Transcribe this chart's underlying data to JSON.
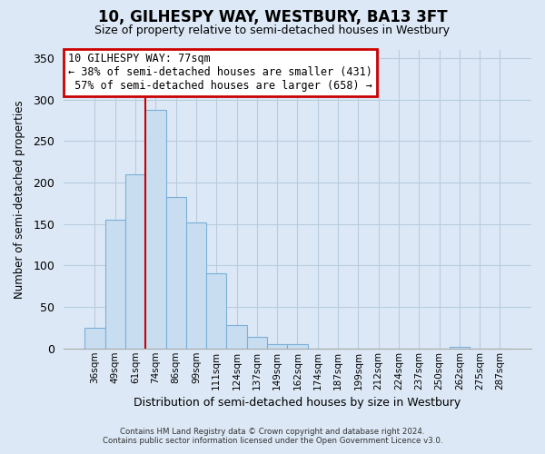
{
  "title": "10, GILHESPY WAY, WESTBURY, BA13 3FT",
  "subtitle": "Size of property relative to semi-detached houses in Westbury",
  "xlabel": "Distribution of semi-detached houses by size in Westbury",
  "ylabel": "Number of semi-detached properties",
  "footer_lines": [
    "Contains HM Land Registry data © Crown copyright and database right 2024.",
    "Contains public sector information licensed under the Open Government Licence v3.0."
  ],
  "bin_labels": [
    "36sqm",
    "49sqm",
    "61sqm",
    "74sqm",
    "86sqm",
    "99sqm",
    "111sqm",
    "124sqm",
    "137sqm",
    "149sqm",
    "162sqm",
    "174sqm",
    "187sqm",
    "199sqm",
    "212sqm",
    "224sqm",
    "237sqm",
    "250sqm",
    "262sqm",
    "275sqm",
    "287sqm"
  ],
  "bar_values": [
    25,
    155,
    210,
    288,
    183,
    152,
    91,
    28,
    14,
    5,
    5,
    0,
    0,
    0,
    0,
    0,
    0,
    0,
    2,
    0,
    0
  ],
  "bar_color": "#c9ddf0",
  "bar_edge_color": "#7ab0d8",
  "red_line_bin_index": 3,
  "annotation_title": "10 GILHESPY WAY: 77sqm",
  "annotation_line1": "← 38% of semi-detached houses are smaller (431)",
  "annotation_line2": " 57% of semi-detached houses are larger (658) →",
  "annotation_box_color": "white",
  "annotation_box_edge_color": "#cc0000",
  "ylim": [
    0,
    360
  ],
  "yticks": [
    0,
    50,
    100,
    150,
    200,
    250,
    300,
    350
  ],
  "background_color": "#dce8f5",
  "plot_bg_color": "#dce8f5",
  "grid_color": "#b8ccdf",
  "title_fontsize": 12,
  "subtitle_fontsize": 9
}
